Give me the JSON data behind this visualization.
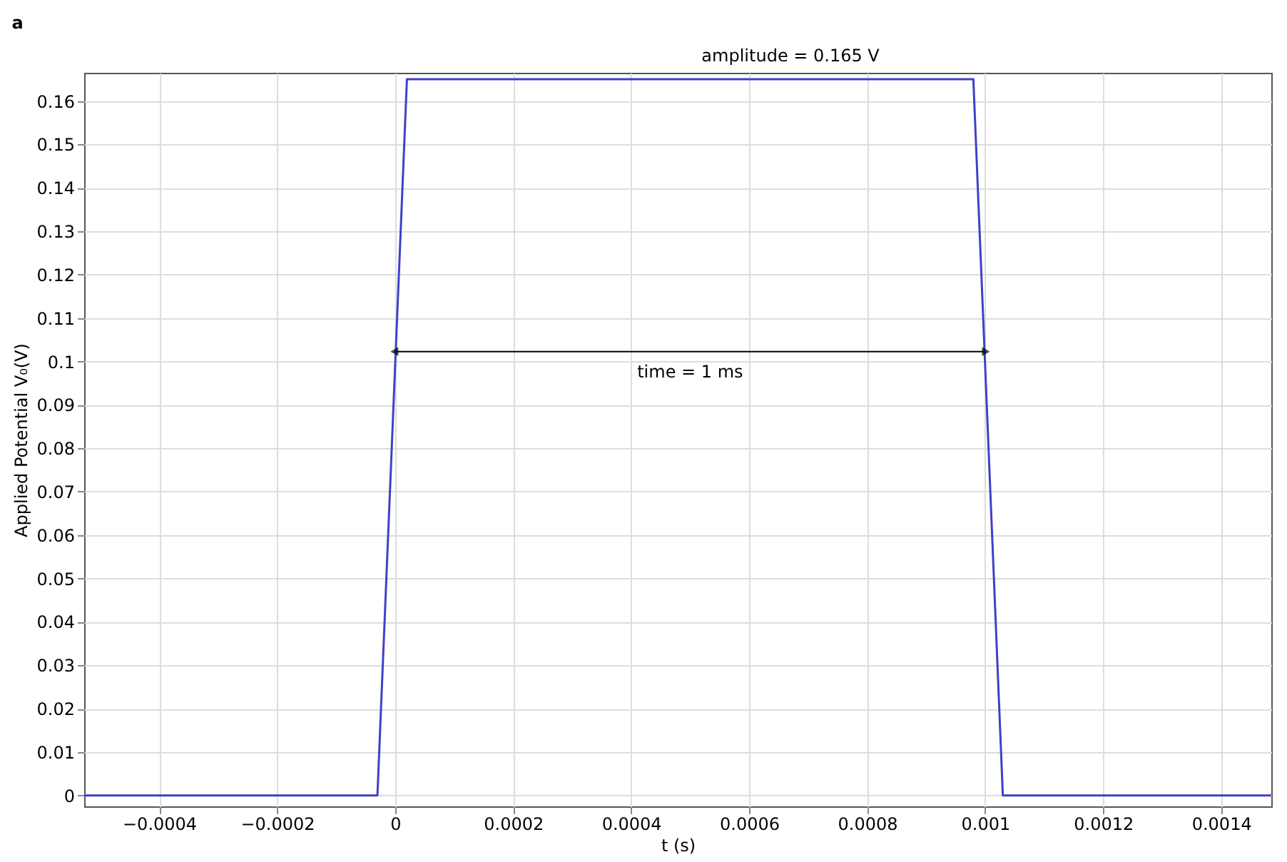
{
  "chart_data": {
    "type": "line",
    "title": "a",
    "xlabel": "t (s)",
    "ylabel": "Applied Potential V₀(V)",
    "x": [
      -0.000527,
      -3e-05,
      2e-05,
      0.00098,
      0.00103,
      0.001485
    ],
    "series": [
      {
        "color": "#4040c8",
        "values": [
          0,
          0,
          0.165,
          0.165,
          0,
          0
        ]
      }
    ],
    "xlim": [
      -0.000527,
      0.001485
    ],
    "ylim": [
      -0.0025,
      0.1665
    ],
    "xticks": [
      -0.0004,
      -0.0002,
      0,
      0.0002,
      0.0004,
      0.0006,
      0.0008,
      0.001,
      0.0012,
      0.0014
    ],
    "yticks": [
      0,
      0.01,
      0.02,
      0.03,
      0.04,
      0.05,
      0.06,
      0.07,
      0.08,
      0.09,
      0.1,
      0.11,
      0.12,
      0.13,
      0.14,
      0.15,
      0.16
    ],
    "grid": true,
    "line_style": "solid",
    "marker": "none",
    "annotations": [
      {
        "text": "amplitude = 0.165 V",
        "x": 0.0005,
        "y": 0.165
      },
      "time = 1 ms"
    ]
  }
}
